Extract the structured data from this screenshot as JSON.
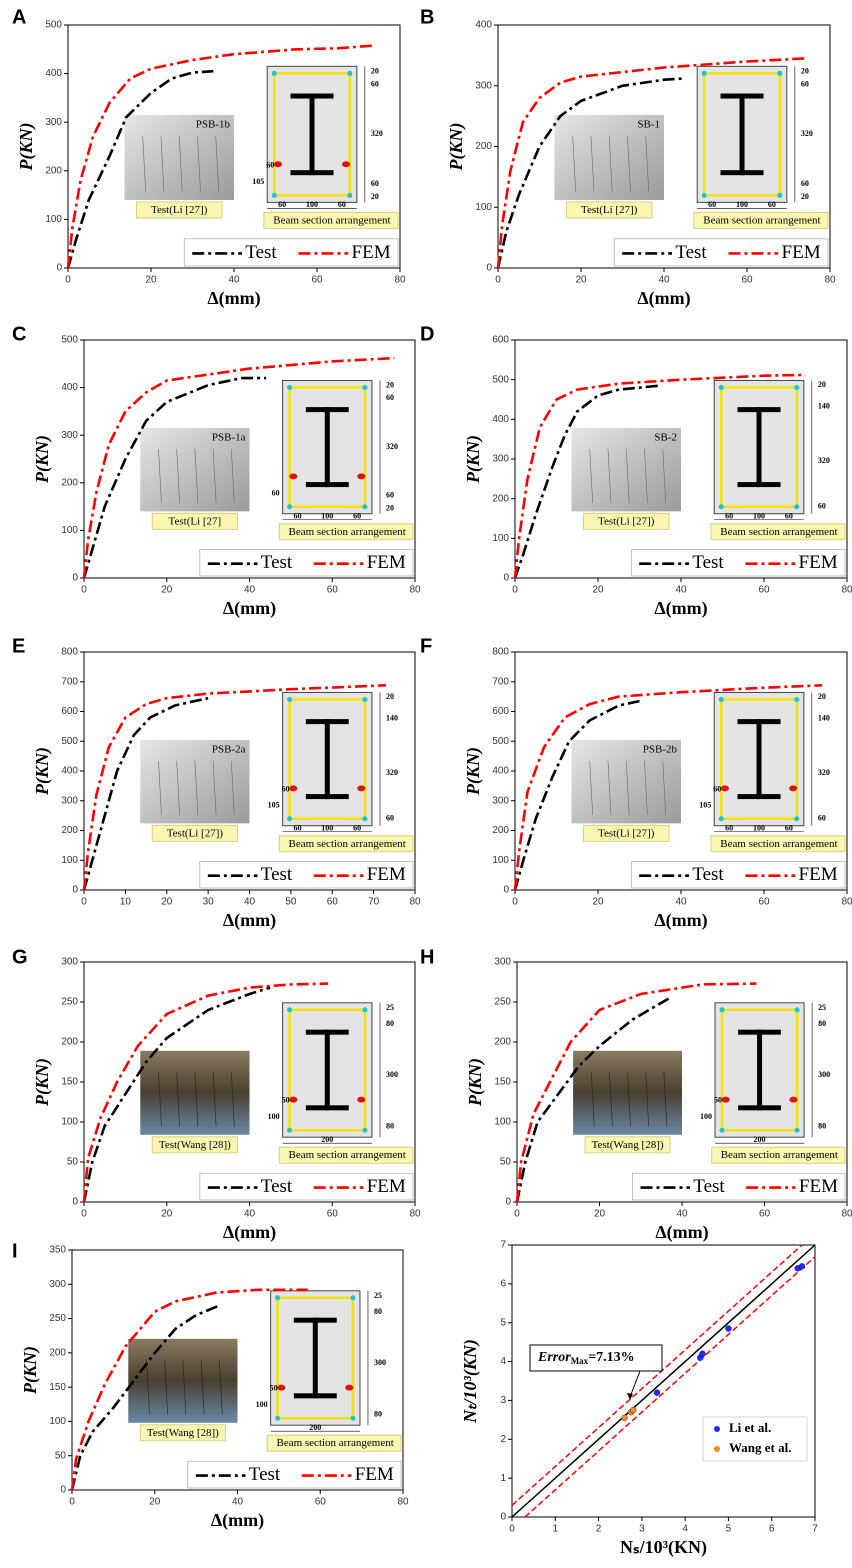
{
  "chart_data": [
    {
      "type": "line",
      "title": "A",
      "xlabel": "Δ(mm)",
      "ylabel": "P(KN)",
      "xlim": [
        0,
        80
      ],
      "ylim": [
        0,
        500
      ],
      "xticks": [
        0,
        20,
        40,
        60,
        80
      ],
      "yticks": [
        0,
        100,
        200,
        300,
        400,
        500
      ],
      "series": [
        {
          "name": "Test",
          "color": "#000000",
          "x": [
            0,
            2,
            5,
            10,
            14,
            20,
            25,
            30,
            35
          ],
          "values": [
            0,
            60,
            140,
            230,
            310,
            360,
            390,
            402,
            405
          ]
        },
        {
          "name": "FEM",
          "color": "#ff0000",
          "x": [
            0,
            1,
            3,
            6,
            10,
            15,
            20,
            30,
            40,
            55,
            65,
            74
          ],
          "values": [
            0,
            80,
            180,
            270,
            340,
            390,
            410,
            428,
            440,
            450,
            452,
            458
          ]
        }
      ],
      "photo_caption": "Test(Li [27])",
      "photo_tag": "PSB-1b",
      "section_caption": "Beam section arrangement",
      "section_dims": {
        "right": [
          20,
          60,
          320,
          60,
          20
        ],
        "bottom": [
          60,
          100,
          60
        ],
        "left": [
          105,
          60
        ]
      }
    },
    {
      "type": "line",
      "title": "B",
      "xlabel": "Δ(mm)",
      "ylabel": "P(KN)",
      "xlim": [
        0,
        80
      ],
      "ylim": [
        0,
        400
      ],
      "xticks": [
        0,
        20,
        40,
        60,
        80
      ],
      "yticks": [
        0,
        100,
        200,
        300,
        400
      ],
      "series": [
        {
          "name": "Test",
          "color": "#000000",
          "x": [
            0,
            2,
            5,
            10,
            15,
            20,
            30,
            40,
            45
          ],
          "values": [
            0,
            60,
            120,
            200,
            250,
            275,
            300,
            310,
            312
          ]
        },
        {
          "name": "FEM",
          "color": "#ff0000",
          "x": [
            0,
            1,
            3,
            6,
            10,
            15,
            20,
            40,
            60,
            74
          ],
          "values": [
            0,
            70,
            160,
            240,
            280,
            305,
            315,
            330,
            340,
            345
          ]
        }
      ],
      "photo_caption": "Test(Li [27])",
      "photo_tag": "SB-1",
      "section_caption": "Beam section arrangement",
      "section_dims": {
        "right": [
          20,
          60,
          320,
          60,
          20
        ],
        "bottom": [
          60,
          100,
          60
        ],
        "left": []
      }
    },
    {
      "type": "line",
      "title": "C",
      "xlabel": "Δ(mm)",
      "ylabel": "P(KN)",
      "xlim": [
        0,
        80
      ],
      "ylim": [
        0,
        500
      ],
      "xticks": [
        0,
        20,
        40,
        60,
        80
      ],
      "yticks": [
        0,
        100,
        200,
        300,
        400,
        500
      ],
      "series": [
        {
          "name": "Test",
          "color": "#000000",
          "x": [
            0,
            2,
            5,
            10,
            15,
            20,
            30,
            38,
            44
          ],
          "values": [
            0,
            60,
            150,
            250,
            330,
            370,
            405,
            420,
            420
          ]
        },
        {
          "name": "FEM",
          "color": "#ff0000",
          "x": [
            0,
            1,
            3,
            6,
            10,
            15,
            20,
            40,
            60,
            75
          ],
          "values": [
            0,
            80,
            180,
            280,
            350,
            390,
            415,
            440,
            455,
            462
          ]
        }
      ],
      "photo_caption": "Test(Li [27]",
      "photo_tag": "PSB-1a",
      "section_caption": "Beam section arrangement",
      "section_dims": {
        "right": [
          20,
          60,
          320,
          60,
          20
        ],
        "bottom": [
          60,
          100,
          60
        ],
        "left": [
          60
        ]
      }
    },
    {
      "type": "line",
      "title": "D",
      "xlabel": "Δ(mm)",
      "ylabel": "P(KN)",
      "xlim": [
        0,
        80
      ],
      "ylim": [
        0,
        600
      ],
      "xticks": [
        0,
        20,
        40,
        60,
        80
      ],
      "yticks": [
        0,
        100,
        200,
        300,
        400,
        500,
        600
      ],
      "series": [
        {
          "name": "Test",
          "color": "#000000",
          "x": [
            0,
            2,
            5,
            9,
            12,
            15,
            20,
            25,
            35
          ],
          "values": [
            0,
            60,
            160,
            280,
            360,
            420,
            460,
            475,
            485
          ]
        },
        {
          "name": "FEM",
          "color": "#ff0000",
          "x": [
            0,
            1,
            3,
            6,
            10,
            15,
            25,
            40,
            60,
            70
          ],
          "values": [
            0,
            100,
            250,
            380,
            450,
            475,
            490,
            500,
            510,
            512
          ]
        }
      ],
      "photo_caption": "Test(Li [27])",
      "photo_tag": "SB-2",
      "section_caption": "Beam section arrangement",
      "section_dims": {
        "right": [
          20,
          140,
          320,
          60
        ],
        "bottom": [
          60,
          100,
          60
        ],
        "left": []
      }
    },
    {
      "type": "line",
      "title": "E",
      "xlabel": "Δ(mm)",
      "ylabel": "P(KN)",
      "xlim": [
        0,
        80
      ],
      "ylim": [
        0,
        800
      ],
      "xticks": [
        0,
        10,
        20,
        30,
        40,
        50,
        60,
        70,
        80
      ],
      "yticks": [
        0,
        100,
        200,
        300,
        400,
        500,
        600,
        700,
        800
      ],
      "series": [
        {
          "name": "Test",
          "color": "#000000",
          "x": [
            0,
            2,
            5,
            8,
            12,
            16,
            22,
            30
          ],
          "values": [
            0,
            100,
            250,
            400,
            520,
            580,
            620,
            645
          ]
        },
        {
          "name": "FEM",
          "color": "#ff0000",
          "x": [
            0,
            1,
            3,
            6,
            10,
            15,
            20,
            30,
            50,
            73
          ],
          "values": [
            0,
            130,
            320,
            480,
            580,
            625,
            645,
            660,
            675,
            688
          ]
        }
      ],
      "photo_caption": "Test(Li [27])",
      "photo_tag": "PSB-2a",
      "section_caption": "Beam section arrangement",
      "section_dims": {
        "right": [
          20,
          140,
          320,
          60
        ],
        "bottom": [
          60,
          100,
          60
        ],
        "left": [
          105,
          60
        ]
      }
    },
    {
      "type": "line",
      "title": "F",
      "xlabel": "Δ(mm)",
      "ylabel": "P(KN)",
      "xlim": [
        0,
        80
      ],
      "ylim": [
        0,
        800
      ],
      "xticks": [
        0,
        20,
        40,
        60,
        80
      ],
      "yticks": [
        0,
        100,
        200,
        300,
        400,
        500,
        600,
        700,
        800
      ],
      "series": [
        {
          "name": "Test",
          "color": "#000000",
          "x": [
            0,
            2,
            5,
            9,
            13,
            18,
            25,
            30
          ],
          "values": [
            0,
            100,
            240,
            380,
            500,
            570,
            620,
            635
          ]
        },
        {
          "name": "FEM",
          "color": "#ff0000",
          "x": [
            0,
            1,
            3,
            7,
            12,
            18,
            25,
            40,
            60,
            74
          ],
          "values": [
            0,
            130,
            330,
            480,
            580,
            625,
            650,
            665,
            680,
            688
          ]
        }
      ],
      "photo_caption": "Test(Li [27])",
      "photo_tag": "PSB-2b",
      "section_caption": "Beam section arrangement",
      "section_dims": {
        "right": [
          20,
          140,
          320,
          60
        ],
        "bottom": [
          60,
          100,
          60
        ],
        "left": [
          105,
          60
        ]
      }
    },
    {
      "type": "line",
      "title": "G",
      "xlabel": "Δ(mm)",
      "ylabel": "P(KN)",
      "xlim": [
        0,
        80
      ],
      "ylim": [
        0,
        300
      ],
      "xticks": [
        0,
        20,
        40,
        60,
        80
      ],
      "yticks": [
        0,
        50,
        100,
        150,
        200,
        250,
        300
      ],
      "series": [
        {
          "name": "Test",
          "color": "#000000",
          "x": [
            0,
            2,
            5,
            10,
            15,
            20,
            30,
            40,
            45
          ],
          "values": [
            0,
            50,
            95,
            135,
            175,
            205,
            240,
            260,
            268
          ]
        },
        {
          "name": "FEM",
          "color": "#ff0000",
          "x": [
            0,
            1,
            4,
            8,
            13,
            20,
            30,
            40,
            50,
            59
          ],
          "values": [
            0,
            55,
            105,
            150,
            195,
            235,
            258,
            268,
            272,
            273
          ]
        }
      ],
      "photo_caption": "Test(Wang [28])",
      "section_caption": "Beam section arrangement",
      "section_dims": {
        "right": [
          25,
          80,
          300,
          80
        ],
        "bottom": [
          200
        ],
        "left": [
          100,
          50
        ]
      }
    },
    {
      "type": "line",
      "title": "H",
      "xlabel": "Δ(mm)",
      "ylabel": "P(KN)",
      "xlim": [
        0,
        80
      ],
      "ylim": [
        0,
        300
      ],
      "xticks": [
        0,
        20,
        40,
        60,
        80
      ],
      "yticks": [
        0,
        50,
        100,
        150,
        200,
        250,
        300
      ],
      "series": [
        {
          "name": "Test",
          "color": "#000000",
          "x": [
            0,
            2,
            5,
            10,
            15,
            20,
            28,
            37
          ],
          "values": [
            0,
            50,
            100,
            135,
            170,
            195,
            228,
            255
          ]
        },
        {
          "name": "FEM",
          "color": "#ff0000",
          "x": [
            0,
            1,
            4,
            8,
            13,
            20,
            30,
            45,
            58
          ],
          "values": [
            0,
            50,
            110,
            150,
            200,
            240,
            260,
            272,
            273
          ]
        }
      ],
      "photo_caption": "Test(Wang [28])",
      "section_caption": "Beam section arrangement",
      "section_dims": {
        "right": [
          25,
          80,
          300,
          80
        ],
        "bottom": [
          200
        ],
        "left": [
          100,
          50
        ]
      }
    },
    {
      "type": "line",
      "title": "I",
      "xlabel": "Δ(mm)",
      "ylabel": "P(KN)",
      "xlim": [
        0,
        80
      ],
      "ylim": [
        0,
        350
      ],
      "xticks": [
        0,
        20,
        40,
        60,
        80
      ],
      "yticks": [
        0,
        50,
        100,
        150,
        200,
        250,
        300,
        350
      ],
      "series": [
        {
          "name": "Test",
          "color": "#000000",
          "x": [
            0,
            2,
            5,
            10,
            15,
            20,
            25,
            30,
            36
          ],
          "values": [
            0,
            50,
            85,
            120,
            160,
            200,
            235,
            255,
            270
          ]
        },
        {
          "name": "FEM",
          "color": "#ff0000",
          "x": [
            0,
            1,
            4,
            8,
            13,
            20,
            25,
            35,
            45,
            57
          ],
          "values": [
            0,
            45,
            100,
            155,
            210,
            260,
            275,
            288,
            292,
            292
          ]
        }
      ],
      "photo_caption": "Test(Wang [28])",
      "section_caption": "Beam section arrangement",
      "section_dims": {
        "right": [
          25,
          80,
          300,
          80
        ],
        "bottom": [
          200
        ],
        "left": [
          100,
          50
        ]
      }
    },
    {
      "type": "scatter",
      "xlabel": "Nₛ/10³(KN)",
      "ylabel": "Nₜ/10³(KN)",
      "xlim": [
        0,
        7
      ],
      "ylim": [
        0,
        7
      ],
      "xticks": [
        0,
        1,
        2,
        3,
        4,
        5,
        6,
        7
      ],
      "yticks": [
        0,
        1,
        2,
        3,
        4,
        5,
        6,
        7
      ],
      "series": [
        {
          "name": "Li et al.",
          "color": "#1f2cff",
          "x": [
            3.35,
            4.35,
            4.4,
            5.0,
            6.6,
            6.7
          ],
          "values": [
            3.2,
            4.1,
            4.2,
            4.85,
            6.4,
            6.45
          ]
        },
        {
          "name": "Wang et al.",
          "color": "#ff8a1f",
          "x": [
            2.6,
            2.75,
            2.8
          ],
          "values": [
            2.55,
            2.7,
            2.75
          ]
        }
      ],
      "reference_lines": [
        {
          "color": "#000000",
          "dash": false,
          "x": [
            0,
            7
          ],
          "values": [
            0,
            7
          ]
        },
        {
          "color": "#ff0000",
          "dash": true,
          "x": [
            0,
            6.7
          ],
          "values": [
            0.3,
            7
          ]
        },
        {
          "color": "#ff0000",
          "dash": true,
          "x": [
            0.3,
            7
          ],
          "values": [
            0,
            6.7
          ]
        }
      ],
      "annotation": [
        "Error",
        "Max",
        "=7.13%"
      ]
    }
  ]
}
